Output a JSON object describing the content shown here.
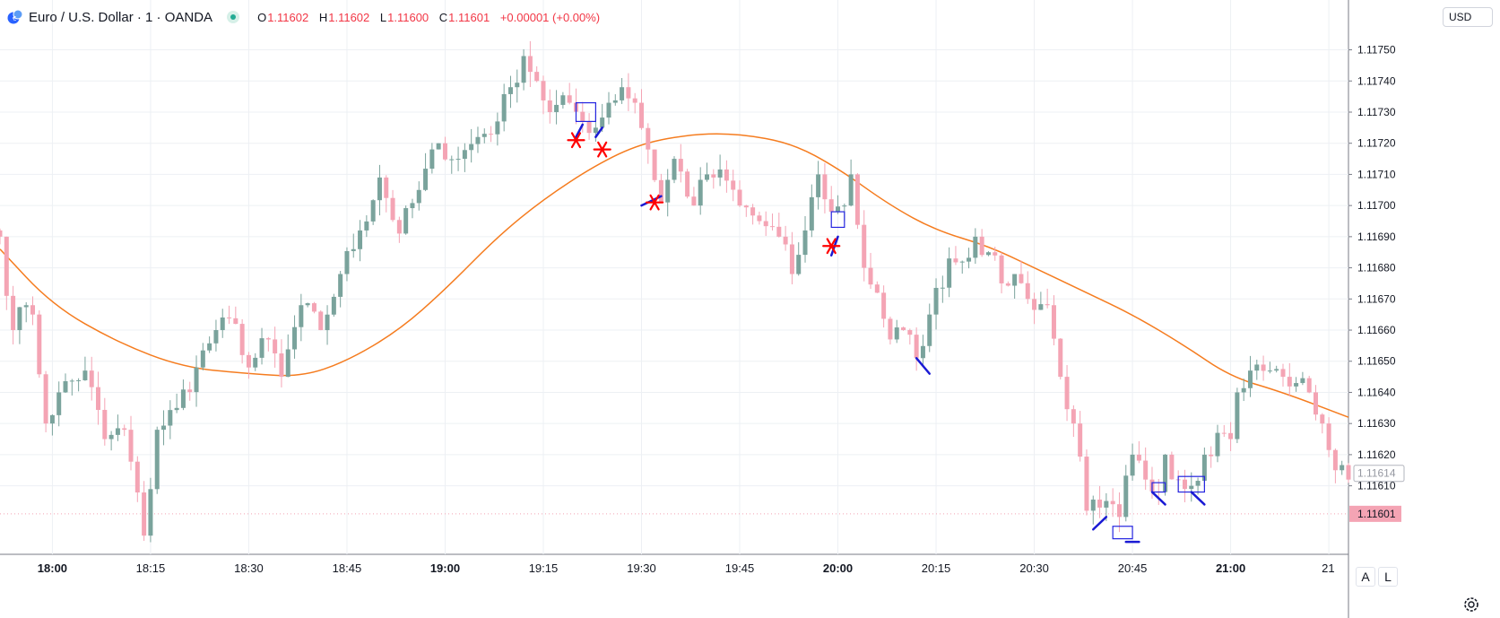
{
  "header": {
    "symbol_title": "Euro / U.S. Dollar · 1 · OANDA",
    "ohlc": {
      "o_label": "O",
      "o_value": "1.11602",
      "h_label": "H",
      "h_value": "1.11602",
      "l_label": "L",
      "l_value": "1.11600",
      "c_label": "C",
      "c_value": "1.11601",
      "change": "+0.00001 (+0.00%)"
    }
  },
  "currency": "USD",
  "scale_buttons": {
    "auto": "A",
    "log": "L"
  },
  "colors": {
    "up": "#7aa39c",
    "down": "#f4a4b4",
    "ma": "#f57c1f",
    "grid": "#edf0f4",
    "axis_text": "#131722",
    "price_tag": "#f4a4b4",
    "marker_red": "#ff0000",
    "marker_blue": "#1a1ad4"
  },
  "chart_data": {
    "type": "candlestick",
    "y_range": [
      1.11588,
      1.11766
    ],
    "y_ticks": [
      "1.11750",
      "1.11740",
      "1.11730",
      "1.11720",
      "1.11710",
      "1.11700",
      "1.11690",
      "1.11680",
      "1.11670",
      "1.11660",
      "1.11650",
      "1.11640",
      "1.11630",
      "1.11620",
      "1.11610"
    ],
    "x_range_minutes": [
      "17:52",
      "21:18"
    ],
    "x_ticks": [
      {
        "label": "18:00",
        "bold": true
      },
      {
        "label": "18:15",
        "bold": false
      },
      {
        "label": "18:30",
        "bold": false
      },
      {
        "label": "18:45",
        "bold": false
      },
      {
        "label": "19:00",
        "bold": true
      },
      {
        "label": "19:15",
        "bold": false
      },
      {
        "label": "19:30",
        "bold": false
      },
      {
        "label": "19:45",
        "bold": false
      },
      {
        "label": "20:00",
        "bold": true
      },
      {
        "label": "20:15",
        "bold": false
      },
      {
        "label": "20:30",
        "bold": false
      },
      {
        "label": "20:45",
        "bold": false
      },
      {
        "label": "21:00",
        "bold": true
      },
      {
        "label": "21",
        "bold": false
      }
    ],
    "current_price_label": "1.11601",
    "current_price": 1.11601,
    "crosshair_price_label": "1.11614",
    "crosshair_price": 1.11614,
    "anchors": [
      {
        "t": "17:52",
        "c": 1.1169
      },
      {
        "t": "17:54",
        "c": 1.1166
      },
      {
        "t": "17:56",
        "c": 1.11668
      },
      {
        "t": "17:57",
        "c": 1.11665
      },
      {
        "t": "17:59",
        "c": 1.1163
      },
      {
        "t": "18:01",
        "c": 1.1164
      },
      {
        "t": "18:05",
        "c": 1.11647
      },
      {
        "t": "18:08",
        "c": 1.11625
      },
      {
        "t": "18:11",
        "c": 1.11628
      },
      {
        "t": "18:14",
        "c": 1.11594
      },
      {
        "t": "18:16",
        "c": 1.11628
      },
      {
        "t": "18:19",
        "c": 1.11635
      },
      {
        "t": "18:22",
        "c": 1.11648
      },
      {
        "t": "18:25",
        "c": 1.1166
      },
      {
        "t": "18:28",
        "c": 1.11662
      },
      {
        "t": "18:30",
        "c": 1.11648
      },
      {
        "t": "18:33",
        "c": 1.11657
      },
      {
        "t": "18:35",
        "c": 1.11645
      },
      {
        "t": "18:38",
        "c": 1.11668
      },
      {
        "t": "18:41",
        "c": 1.1166
      },
      {
        "t": "18:44",
        "c": 1.11678
      },
      {
        "t": "18:47",
        "c": 1.11692
      },
      {
        "t": "18:50",
        "c": 1.11709
      },
      {
        "t": "18:53",
        "c": 1.11691
      },
      {
        "t": "18:56",
        "c": 1.11705
      },
      {
        "t": "18:59",
        "c": 1.1172
      },
      {
        "t": "19:02",
        "c": 1.11715
      },
      {
        "t": "19:05",
        "c": 1.11722
      },
      {
        "t": "19:08",
        "c": 1.11727
      },
      {
        "t": "19:10",
        "c": 1.11738
      },
      {
        "t": "19:12",
        "c": 1.11748
      },
      {
        "t": "19:14",
        "c": 1.1174
      },
      {
        "t": "19:16",
        "c": 1.1173
      },
      {
        "t": "19:19",
        "c": 1.11733
      },
      {
        "t": "19:21",
        "c": 1.11727
      },
      {
        "t": "19:23",
        "c": 1.11725
      },
      {
        "t": "19:25",
        "c": 1.11733
      },
      {
        "t": "19:27",
        "c": 1.11738
      },
      {
        "t": "19:29",
        "c": 1.11733
      },
      {
        "t": "19:31",
        "c": 1.11718
      },
      {
        "t": "19:33",
        "c": 1.11701
      },
      {
        "t": "19:35",
        "c": 1.11715
      },
      {
        "t": "19:38",
        "c": 1.117
      },
      {
        "t": "19:40",
        "c": 1.1171
      },
      {
        "t": "19:43",
        "c": 1.11708
      },
      {
        "t": "19:45",
        "c": 1.117
      },
      {
        "t": "19:48",
        "c": 1.11695
      },
      {
        "t": "19:51",
        "c": 1.1169
      },
      {
        "t": "19:53",
        "c": 1.11678
      },
      {
        "t": "19:55",
        "c": 1.11692
      },
      {
        "t": "19:57",
        "c": 1.1171
      },
      {
        "t": "19:59",
        "c": 1.11698
      },
      {
        "t": "20:01",
        "c": 1.117
      },
      {
        "t": "20:02",
        "c": 1.1171
      },
      {
        "t": "20:04",
        "c": 1.1168
      },
      {
        "t": "20:06",
        "c": 1.11672
      },
      {
        "t": "20:08",
        "c": 1.11657
      },
      {
        "t": "20:10",
        "c": 1.1166
      },
      {
        "t": "20:12",
        "c": 1.11651
      },
      {
        "t": "20:14",
        "c": 1.11665
      },
      {
        "t": "20:17",
        "c": 1.11683
      },
      {
        "t": "20:19",
        "c": 1.11682
      },
      {
        "t": "20:21",
        "c": 1.1169
      },
      {
        "t": "20:23",
        "c": 1.11685
      },
      {
        "t": "20:25",
        "c": 1.11675
      },
      {
        "t": "20:27",
        "c": 1.11678
      },
      {
        "t": "20:29",
        "c": 1.1167
      },
      {
        "t": "20:32",
        "c": 1.11668
      },
      {
        "t": "20:34",
        "c": 1.11645
      },
      {
        "t": "20:36",
        "c": 1.1163
      },
      {
        "t": "20:38",
        "c": 1.11602
      },
      {
        "t": "20:40",
        "c": 1.11603
      },
      {
        "t": "20:43",
        "c": 1.116
      },
      {
        "t": "20:45",
        "c": 1.1162
      },
      {
        "t": "20:47",
        "c": 1.11612
      },
      {
        "t": "20:49",
        "c": 1.11608
      },
      {
        "t": "20:50",
        "c": 1.1162
      },
      {
        "t": "20:52",
        "c": 1.11612
      },
      {
        "t": "20:54",
        "c": 1.1161
      },
      {
        "t": "20:56",
        "c": 1.1162
      },
      {
        "t": "20:58",
        "c": 1.11627
      },
      {
        "t": "21:00",
        "c": 1.11625
      },
      {
        "t": "21:01",
        "c": 1.1164
      },
      {
        "t": "21:03",
        "c": 1.11647
      },
      {
        "t": "21:06",
        "c": 1.11647
      },
      {
        "t": "21:08",
        "c": 1.11645
      },
      {
        "t": "21:10",
        "c": 1.11643
      },
      {
        "t": "21:12",
        "c": 1.1164
      },
      {
        "t": "21:14",
        "c": 1.1163
      },
      {
        "t": "21:16",
        "c": 1.11615
      },
      {
        "t": "21:18",
        "c": 1.11612
      }
    ],
    "moving_average": [
      {
        "t": "17:52",
        "v": 1.11686
      },
      {
        "t": "18:00",
        "v": 1.11668
      },
      {
        "t": "18:10",
        "v": 1.11656
      },
      {
        "t": "18:20",
        "v": 1.11648
      },
      {
        "t": "18:30",
        "v": 1.11646
      },
      {
        "t": "18:38",
        "v": 1.11645
      },
      {
        "t": "18:45",
        "v": 1.1165
      },
      {
        "t": "18:53",
        "v": 1.1166
      },
      {
        "t": "19:00",
        "v": 1.11673
      },
      {
        "t": "19:08",
        "v": 1.1169
      },
      {
        "t": "19:15",
        "v": 1.11702
      },
      {
        "t": "19:23",
        "v": 1.11713
      },
      {
        "t": "19:30",
        "v": 1.1172
      },
      {
        "t": "19:38",
        "v": 1.11723
      },
      {
        "t": "19:45",
        "v": 1.11723
      },
      {
        "t": "19:53",
        "v": 1.1172
      },
      {
        "t": "20:00",
        "v": 1.11712
      },
      {
        "t": "20:08",
        "v": 1.117
      },
      {
        "t": "20:15",
        "v": 1.11692
      },
      {
        "t": "20:23",
        "v": 1.11687
      },
      {
        "t": "20:30",
        "v": 1.1168
      },
      {
        "t": "20:38",
        "v": 1.11672
      },
      {
        "t": "20:45",
        "v": 1.11665
      },
      {
        "t": "20:53",
        "v": 1.11655
      },
      {
        "t": "21:00",
        "v": 1.11645
      },
      {
        "t": "21:08",
        "v": 1.1164
      },
      {
        "t": "21:18",
        "v": 1.11632
      }
    ],
    "annotations": {
      "red_stars": [
        {
          "t": "19:20",
          "p": 1.11721
        },
        {
          "t": "19:24",
          "p": 1.11718
        },
        {
          "t": "19:32",
          "p": 1.11701
        },
        {
          "t": "19:59",
          "p": 1.11687
        }
      ],
      "blue_boxes": [
        {
          "t0": "19:20",
          "t1": "19:23",
          "p0": 1.11733,
          "p1": 1.11727
        },
        {
          "t0": "19:59",
          "t1": "20:01",
          "p0": 1.11698,
          "p1": 1.11693
        },
        {
          "t0": "20:42",
          "t1": "20:45",
          "p0": 1.11597,
          "p1": 1.11593
        },
        {
          "t0": "20:48",
          "t1": "20:50",
          "p0": 1.11611,
          "p1": 1.11608
        },
        {
          "t0": "20:52",
          "t1": "20:56",
          "p0": 1.11613,
          "p1": 1.11608
        }
      ],
      "blue_strokes": [
        {
          "t0": "19:30",
          "p0": 1.117,
          "t1": "19:33",
          "p1": 1.11703
        },
        {
          "t0": "19:20",
          "p0": 1.11722,
          "t1": "19:21",
          "p1": 1.11726
        },
        {
          "t0": "19:23",
          "p0": 1.11722,
          "t1": "19:24",
          "p1": 1.11725
        },
        {
          "t0": "19:59",
          "p0": 1.11684,
          "t1": "20:00",
          "p1": 1.1169
        },
        {
          "t0": "20:12",
          "p0": 1.11651,
          "t1": "20:14",
          "p1": 1.11646
        },
        {
          "t0": "20:39",
          "p0": 1.11596,
          "t1": "20:41",
          "p1": 1.116
        },
        {
          "t0": "20:44",
          "p0": 1.11592,
          "t1": "20:46",
          "p1": 1.11592
        },
        {
          "t0": "20:48",
          "p0": 1.11608,
          "t1": "20:50",
          "p1": 1.11604
        },
        {
          "t0": "20:54",
          "p0": 1.11608,
          "t1": "20:56",
          "p1": 1.11604
        }
      ]
    }
  }
}
